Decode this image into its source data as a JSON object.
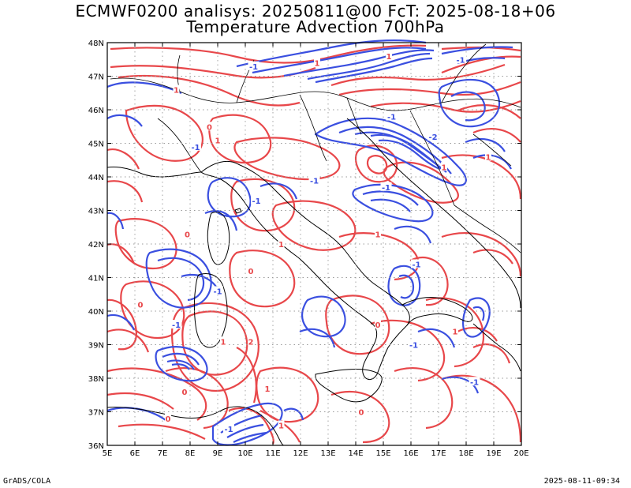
{
  "title_line1": "ECMWF0200 analisys: 20250811@00 FcT: 2025-08-18+06",
  "title_line2": "Temperature Advection 700hPa",
  "footer_left": "GrADS/COLA",
  "footer_right": "2025-08-11-09:34",
  "map": {
    "lon_range": [
      5,
      20
    ],
    "lat_range": [
      36,
      48
    ],
    "lon_ticks": [
      "5E",
      "6E",
      "7E",
      "8E",
      "9E",
      "10E",
      "11E",
      "12E",
      "13E",
      "14E",
      "15E",
      "16E",
      "17E",
      "18E",
      "19E",
      "20E"
    ],
    "lat_ticks": [
      "36N",
      "37N",
      "38N",
      "39N",
      "40N",
      "41N",
      "42N",
      "43N",
      "44N",
      "45N",
      "46N",
      "47N",
      "48N"
    ],
    "grid": true,
    "colors": {
      "positive": "#e8474a",
      "negative": "#3a4fe0",
      "coast": "#000000",
      "grid": "#9a9a9a"
    },
    "contour_labels": [
      {
        "text": "1",
        "lon": 12.6,
        "lat": 47.4,
        "sign": "pos"
      },
      {
        "text": "1",
        "lon": 15.2,
        "lat": 47.6,
        "sign": "pos"
      },
      {
        "text": "-1",
        "lon": 17.8,
        "lat": 47.5,
        "sign": "neg"
      },
      {
        "text": "1",
        "lon": 7.5,
        "lat": 46.6,
        "sign": "pos"
      },
      {
        "text": "-1",
        "lon": 10.3,
        "lat": 47.3,
        "sign": "neg"
      },
      {
        "text": "1",
        "lon": 9.0,
        "lat": 45.1,
        "sign": "pos"
      },
      {
        "text": "-1",
        "lon": 8.2,
        "lat": 44.9,
        "sign": "neg"
      },
      {
        "text": "0",
        "lon": 8.7,
        "lat": 45.5,
        "sign": "pos"
      },
      {
        "text": "-1",
        "lon": 15.3,
        "lat": 45.8,
        "sign": "neg"
      },
      {
        "text": "-2",
        "lon": 16.8,
        "lat": 45.2,
        "sign": "neg"
      },
      {
        "text": "1",
        "lon": 17.2,
        "lat": 44.3,
        "sign": "pos"
      },
      {
        "text": "1",
        "lon": 18.8,
        "lat": 44.6,
        "sign": "pos"
      },
      {
        "text": "-1",
        "lon": 12.5,
        "lat": 43.9,
        "sign": "neg"
      },
      {
        "text": "-1",
        "lon": 15.1,
        "lat": 43.7,
        "sign": "neg"
      },
      {
        "text": "-1",
        "lon": 10.4,
        "lat": 43.3,
        "sign": "neg"
      },
      {
        "text": "1",
        "lon": 11.3,
        "lat": 42.0,
        "sign": "pos"
      },
      {
        "text": "0",
        "lon": 7.9,
        "lat": 42.3,
        "sign": "pos"
      },
      {
        "text": "1",
        "lon": 14.8,
        "lat": 42.3,
        "sign": "pos"
      },
      {
        "text": "-1",
        "lon": 16.2,
        "lat": 41.4,
        "sign": "neg"
      },
      {
        "text": "0",
        "lon": 10.2,
        "lat": 41.2,
        "sign": "pos"
      },
      {
        "text": "-1",
        "lon": 9.0,
        "lat": 40.6,
        "sign": "neg"
      },
      {
        "text": "0",
        "lon": 6.2,
        "lat": 40.2,
        "sign": "pos"
      },
      {
        "text": "-1",
        "lon": 7.5,
        "lat": 39.6,
        "sign": "neg"
      },
      {
        "text": "1",
        "lon": 9.2,
        "lat": 39.1,
        "sign": "pos"
      },
      {
        "text": "2",
        "lon": 10.2,
        "lat": 39.1,
        "sign": "pos"
      },
      {
        "text": "0",
        "lon": 14.8,
        "lat": 39.6,
        "sign": "pos"
      },
      {
        "text": "-1",
        "lon": 16.1,
        "lat": 39.0,
        "sign": "neg"
      },
      {
        "text": "1",
        "lon": 17.6,
        "lat": 39.4,
        "sign": "pos"
      },
      {
        "text": "-1",
        "lon": 18.3,
        "lat": 37.9,
        "sign": "neg"
      },
      {
        "text": "0",
        "lon": 7.8,
        "lat": 37.6,
        "sign": "pos"
      },
      {
        "text": "1",
        "lon": 10.8,
        "lat": 37.7,
        "sign": "pos"
      },
      {
        "text": "0",
        "lon": 14.2,
        "lat": 37.0,
        "sign": "pos"
      },
      {
        "text": "0",
        "lon": 7.2,
        "lat": 36.8,
        "sign": "pos"
      },
      {
        "text": "-1",
        "lon": 9.4,
        "lat": 36.5,
        "sign": "neg"
      },
      {
        "text": "1",
        "lon": 11.3,
        "lat": 36.6,
        "sign": "pos"
      }
    ]
  }
}
